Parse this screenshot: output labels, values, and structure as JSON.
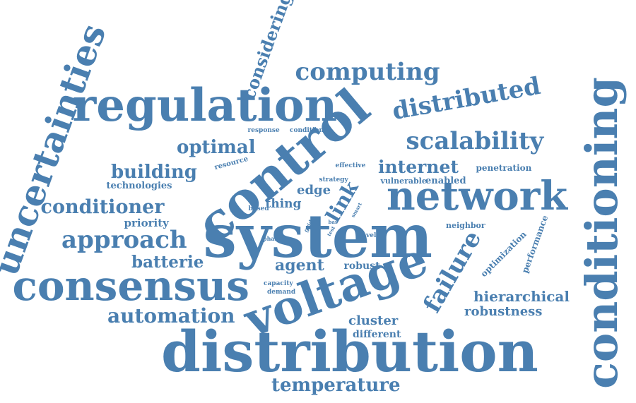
{
  "cloud": {
    "color": "#4a7fb0",
    "words": [
      {
        "text": "distribution",
        "weight": 1.0,
        "rotation": 0
      },
      {
        "text": "system",
        "weight": 0.93,
        "rotation": 0
      },
      {
        "text": "control",
        "weight": 0.9,
        "rotation": -40
      },
      {
        "text": "conditioning",
        "weight": 0.86,
        "rotation": -90
      },
      {
        "text": "regulation",
        "weight": 0.8,
        "rotation": 0
      },
      {
        "text": "voltage",
        "weight": 0.8,
        "rotation": -20
      },
      {
        "text": "consensus",
        "weight": 0.76,
        "rotation": 0
      },
      {
        "text": "network",
        "weight": 0.68,
        "rotation": 0
      },
      {
        "text": "uncertainties",
        "weight": 0.6,
        "rotation": -70
      },
      {
        "text": "distributed",
        "weight": 0.46,
        "rotation": -10
      },
      {
        "text": "scalability",
        "weight": 0.42,
        "rotation": 0
      },
      {
        "text": "computing",
        "weight": 0.4,
        "rotation": 0
      },
      {
        "text": "approach",
        "weight": 0.4,
        "rotation": 0
      },
      {
        "text": "failure",
        "weight": 0.38,
        "rotation": -60
      },
      {
        "text": "automation",
        "weight": 0.34,
        "rotation": 0
      },
      {
        "text": "temperature",
        "weight": 0.32,
        "rotation": 0
      },
      {
        "text": "conditioner",
        "weight": 0.32,
        "rotation": 0
      },
      {
        "text": "optimal",
        "weight": 0.32,
        "rotation": 0
      },
      {
        "text": "considering",
        "weight": 0.3,
        "rotation": -70
      },
      {
        "text": "building",
        "weight": 0.3,
        "rotation": 0
      },
      {
        "text": "internet",
        "weight": 0.3,
        "rotation": 0
      },
      {
        "text": "link",
        "weight": 0.28,
        "rotation": -60
      },
      {
        "text": "batterie",
        "weight": 0.27,
        "rotation": 0
      },
      {
        "text": "agent",
        "weight": 0.27,
        "rotation": 0
      },
      {
        "text": "hierarchical",
        "weight": 0.24,
        "rotation": 0
      },
      {
        "text": "robustness",
        "weight": 0.22,
        "rotation": 0
      },
      {
        "text": "edge",
        "weight": 0.2,
        "rotation": 0
      },
      {
        "text": "thing",
        "weight": 0.2,
        "rotation": 0
      },
      {
        "text": "cluster",
        "weight": 0.2,
        "rotation": 0
      },
      {
        "text": "priority",
        "weight": 0.18,
        "rotation": 0
      },
      {
        "text": "robust",
        "weight": 0.17,
        "rotation": 0
      },
      {
        "text": "different",
        "weight": 0.16,
        "rotation": 0
      },
      {
        "text": "performance",
        "weight": 0.15,
        "rotation": -70
      },
      {
        "text": "optimization",
        "weight": 0.15,
        "rotation": -45
      },
      {
        "text": "technologies",
        "weight": 0.15,
        "rotation": 0
      },
      {
        "text": "enabled",
        "weight": 0.15,
        "rotation": 0
      },
      {
        "text": "penetration",
        "weight": 0.13,
        "rotation": 0
      },
      {
        "text": "neighbor",
        "weight": 0.12,
        "rotation": 0
      },
      {
        "text": "vulnerable",
        "weight": 0.12,
        "rotation": 0
      },
      {
        "text": "resource",
        "weight": 0.11,
        "rotation": -15
      },
      {
        "text": "response",
        "weight": 0.1,
        "rotation": 0
      },
      {
        "text": "condition",
        "weight": 0.1,
        "rotation": 0
      },
      {
        "text": "effective",
        "weight": 0.1,
        "rotation": 0
      },
      {
        "text": "strategy",
        "weight": 0.1,
        "rotation": 0
      },
      {
        "text": "capacity",
        "weight": 0.1,
        "rotation": 0
      },
      {
        "text": "demand",
        "weight": 0.1,
        "rotation": 0
      },
      {
        "text": "based",
        "weight": 0.1,
        "rotation": 0
      },
      {
        "text": "novel",
        "weight": 0.1,
        "rotation": 0
      },
      {
        "text": "phase",
        "weight": 0.09,
        "rotation": 0
      },
      {
        "text": "grid",
        "weight": 0.08,
        "rotation": -60
      },
      {
        "text": "smart",
        "weight": 0.07,
        "rotation": -60
      },
      {
        "text": "bas",
        "weight": 0.07,
        "rotation": 0
      },
      {
        "text": "test",
        "weight": 0.07,
        "rotation": -60
      }
    ]
  }
}
